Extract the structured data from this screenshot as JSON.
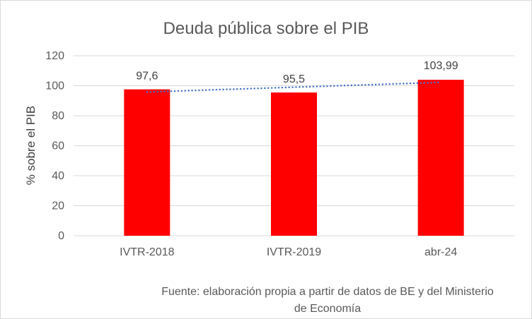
{
  "chart_data": {
    "type": "bar",
    "title": "Deuda pública sobre el PIB",
    "xlabel": "",
    "ylabel": "% sobre el PIB",
    "categories": [
      "IVTR-2018",
      "IVTR-2019",
      "abr-24"
    ],
    "values": [
      97.6,
      95.5,
      103.99
    ],
    "data_labels": [
      "97,6",
      "95,5",
      "103,99"
    ],
    "ylim": [
      0,
      120
    ],
    "y_ticks": [
      0,
      20,
      40,
      60,
      80,
      100,
      120
    ],
    "grid": true,
    "legend": "none",
    "trendline": {
      "type": "linear",
      "style": "dotted",
      "color": "#4472C4"
    },
    "bar_color": "#FF0000",
    "annotation": "Fuente: elaboración propia a partir de datos de BE y del Ministerio de Economía",
    "annotation_lines": [
      "Fuente: elaboración propia a partir de datos de BE y del Ministerio",
      "de Economía"
    ]
  }
}
